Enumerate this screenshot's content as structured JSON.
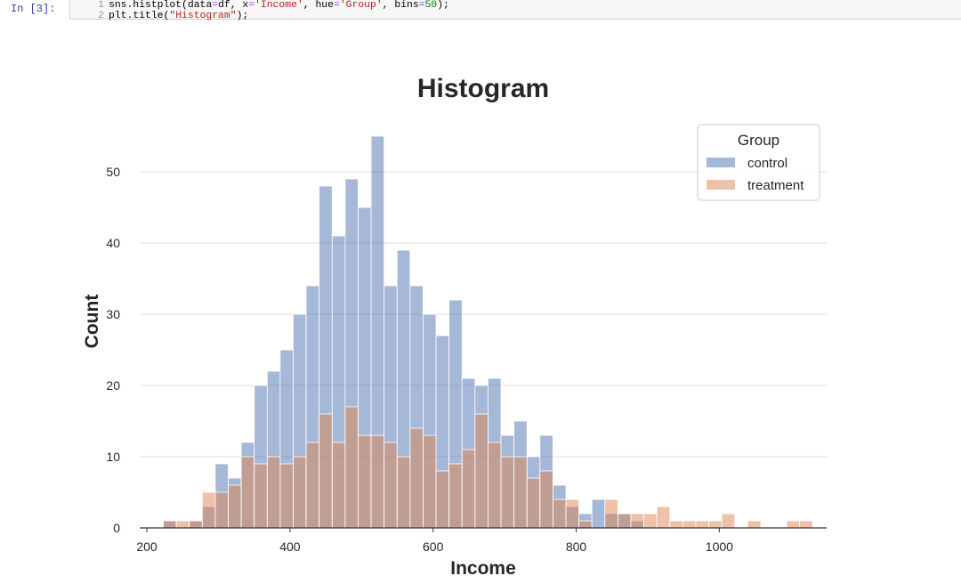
{
  "cell": {
    "prompt": "In [3]:",
    "line_numbers": [
      "1",
      "2"
    ],
    "line1": {
      "p1": "sns.histplot(data",
      "p2": "=",
      "p3": "df, x",
      "p4": "=",
      "p5": "'Income'",
      "p6": ", hue",
      "p7": "=",
      "p8": "'Group'",
      "p9": ", bins",
      "p10": "=",
      "p11": "50",
      "p12": ");"
    },
    "line2": {
      "p1": "plt.title(",
      "p2": "\"Histogram\"",
      "p3": ");"
    }
  },
  "chart_data": {
    "type": "bar",
    "title": "Histogram",
    "xlabel": "Income",
    "ylabel": "Count",
    "xlim": [
      190,
      1150
    ],
    "ylim": [
      0,
      58
    ],
    "xticks": [
      200,
      400,
      600,
      800,
      1000
    ],
    "yticks": [
      0,
      10,
      20,
      30,
      40,
      50
    ],
    "grid": "horizontal",
    "legend": {
      "title": "Group",
      "placement": "top-right"
    },
    "bin_start": 223,
    "bin_width": 18.15,
    "series": [
      {
        "name": "control",
        "color": "#4c72b0",
        "values": [
          1,
          0,
          1,
          3,
          9,
          7,
          12,
          20,
          22,
          25,
          30,
          34,
          48,
          41,
          49,
          45,
          55,
          34,
          39,
          34,
          30,
          27,
          32,
          21,
          20,
          21,
          13,
          15,
          10,
          13,
          6,
          3,
          2,
          4,
          2,
          2,
          1,
          0,
          0,
          0,
          0,
          0,
          0,
          0,
          0,
          0,
          0,
          0,
          0,
          0
        ]
      },
      {
        "name": "treatment",
        "color": "#dd8452",
        "values": [
          1,
          1,
          1,
          5,
          5,
          6,
          10,
          9,
          10,
          9,
          10,
          12,
          16,
          12,
          17,
          13,
          13,
          12,
          10,
          14,
          13,
          8,
          9,
          11,
          16,
          12,
          10,
          10,
          7,
          8,
          4,
          4,
          1,
          0,
          4,
          2,
          2,
          2,
          3,
          1,
          1,
          1,
          1,
          2,
          0,
          1,
          0,
          0,
          1,
          1
        ]
      }
    ]
  }
}
